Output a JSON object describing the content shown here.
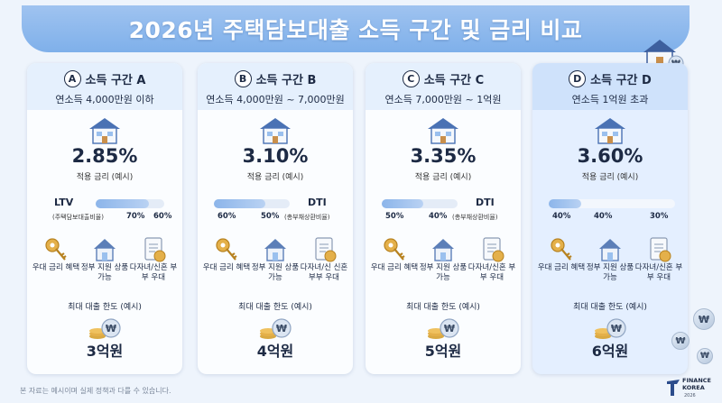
{
  "title": "2026년 주택담보대출 소득 구간 및 금리 비교",
  "rate_label": "적용 금리 (예시)",
  "limit_label": "최대 대출 한도 (예시)",
  "currency_symbol": "₩",
  "benefits": {
    "a": "우대 금리 혜택",
    "b": "정부 지원 상품 가능",
    "c": "다자녀/신혼 부부 우대",
    "c_alt": "다자녀/신 신혼부부 우대"
  },
  "tiers": [
    {
      "letter": "A",
      "name": "소득 구간 A",
      "range": "연소득 4,000만원 이하",
      "rate": "2.85%",
      "rate_value": 2.85,
      "ratio_title": "LTV",
      "ratio_sub": "(주택담보대출비율)",
      "values": [
        "70%",
        "60%"
      ],
      "fill": 0.78,
      "limit": "3억원"
    },
    {
      "letter": "B",
      "name": "소득 구간 B",
      "range": "연소득 4,000만원 ~ 7,000만원",
      "rate": "3.10%",
      "rate_value": 3.1,
      "ratio_title": "DTI",
      "ratio_sub": "(총부채상환비율)",
      "values": [
        "60%",
        "50%"
      ],
      "fill": 0.68,
      "limit": "4억원"
    },
    {
      "letter": "C",
      "name": "소득 구간 C",
      "range": "연소득 7,000만원 ~ 1억원",
      "rate": "3.35%",
      "rate_value": 3.35,
      "ratio_title": "DTI",
      "ratio_sub": "(총부채상환비율)",
      "values": [
        "50%",
        "40%"
      ],
      "fill": 0.55,
      "limit": "5억원"
    },
    {
      "letter": "D",
      "name": "소득 구간 D",
      "range": "연소득 1억원 초과",
      "rate": "3.60%",
      "rate_value": 3.6,
      "ratio_title": "",
      "ratio_sub": "",
      "values": [
        "40%",
        "40%",
        "30%"
      ],
      "fill": 0.26,
      "limit": "6억원"
    }
  ],
  "footer": "본 자료는 예시이며 실제 정책과 다를 수 있습니다.",
  "brand": {
    "name_line1": "FINANCE",
    "name_line2": "KOREA",
    "year": "2026"
  },
  "colors": {
    "banner": "#8db8ed",
    "card_head": "#e5f0fd",
    "highlight_card": "#e4efff",
    "bar_fill": "#8cb5ea",
    "text": "#1d2a44"
  },
  "icons": [
    "house-icon",
    "key-icon",
    "house-outline-icon",
    "document-icon",
    "coin-stack-icon"
  ]
}
